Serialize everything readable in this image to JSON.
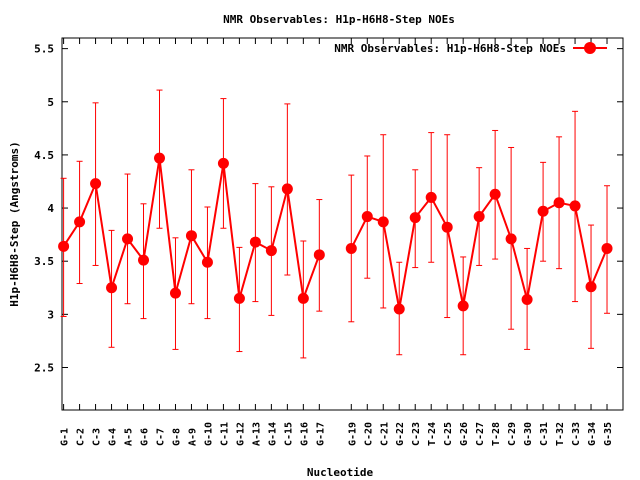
{
  "chart_data": {
    "type": "line",
    "title": "NMR Observables: H1p-H6H8-Step NOEs",
    "xlabel": "Nucleotide",
    "ylabel": "H1p-H6H8-Step (Angstroms)",
    "ylim": [
      2.1,
      5.6
    ],
    "yticks": [
      "2.5",
      "3",
      "3.5",
      "4",
      "4.5",
      "5",
      "5.5"
    ],
    "ytick_values": [
      2.5,
      3,
      3.5,
      4,
      4.5,
      5,
      5.5
    ],
    "xlim": [
      0.9,
      36.0
    ],
    "grid": false,
    "legend_position": "top-right",
    "color": "#ff0000",
    "series": [
      {
        "name": "NMR Observables: H1p-H6H8-Step NOEs",
        "points": [
          {
            "label": "G-1",
            "x": 1,
            "y": 3.64,
            "lo": 2.98,
            "hi": 4.28
          },
          {
            "label": "C-2",
            "x": 2,
            "y": 3.87,
            "lo": 3.29,
            "hi": 4.44
          },
          {
            "label": "C-3",
            "x": 3,
            "y": 4.23,
            "lo": 3.46,
            "hi": 4.99
          },
          {
            "label": "G-4",
            "x": 4,
            "y": 3.25,
            "lo": 2.69,
            "hi": 3.79
          },
          {
            "label": "A-5",
            "x": 5,
            "y": 3.71,
            "lo": 3.1,
            "hi": 4.32
          },
          {
            "label": "G-6",
            "x": 6,
            "y": 3.51,
            "lo": 2.96,
            "hi": 4.04
          },
          {
            "label": "C-7",
            "x": 7,
            "y": 4.47,
            "lo": 3.81,
            "hi": 5.11
          },
          {
            "label": "G-8",
            "x": 8,
            "y": 3.2,
            "lo": 2.67,
            "hi": 3.72
          },
          {
            "label": "A-9",
            "x": 9,
            "y": 3.74,
            "lo": 3.1,
            "hi": 4.36
          },
          {
            "label": "G-10",
            "x": 10,
            "y": 3.49,
            "lo": 2.96,
            "hi": 4.01
          },
          {
            "label": "C-11",
            "x": 11,
            "y": 4.42,
            "lo": 3.81,
            "hi": 5.03
          },
          {
            "label": "G-12",
            "x": 12,
            "y": 3.15,
            "lo": 2.65,
            "hi": 3.63
          },
          {
            "label": "A-13",
            "x": 13,
            "y": 3.68,
            "lo": 3.12,
            "hi": 4.23
          },
          {
            "label": "G-14",
            "x": 14,
            "y": 3.6,
            "lo": 2.99,
            "hi": 4.2
          },
          {
            "label": "C-15",
            "x": 15,
            "y": 4.18,
            "lo": 3.37,
            "hi": 4.98
          },
          {
            "label": "G-16",
            "x": 16,
            "y": 3.15,
            "lo": 2.59,
            "hi": 3.69
          },
          {
            "label": "G-17",
            "x": 17,
            "y": 3.56,
            "lo": 3.03,
            "hi": 4.08
          },
          {
            "label": "G-19",
            "x": 19,
            "y": 3.62,
            "lo": 2.93,
            "hi": 4.31
          },
          {
            "label": "C-20",
            "x": 20,
            "y": 3.92,
            "lo": 3.34,
            "hi": 4.49
          },
          {
            "label": "C-21",
            "x": 21,
            "y": 3.87,
            "lo": 3.06,
            "hi": 4.69
          },
          {
            "label": "G-22",
            "x": 22,
            "y": 3.05,
            "lo": 2.62,
            "hi": 3.49
          },
          {
            "label": "C-23",
            "x": 23,
            "y": 3.91,
            "lo": 3.44,
            "hi": 4.36
          },
          {
            "label": "T-24",
            "x": 24,
            "y": 4.1,
            "lo": 3.49,
            "hi": 4.71
          },
          {
            "label": "C-25",
            "x": 25,
            "y": 3.82,
            "lo": 2.97,
            "hi": 4.69
          },
          {
            "label": "G-26",
            "x": 26,
            "y": 3.08,
            "lo": 2.62,
            "hi": 3.54
          },
          {
            "label": "C-27",
            "x": 27,
            "y": 3.92,
            "lo": 3.46,
            "hi": 4.38
          },
          {
            "label": "T-28",
            "x": 28,
            "y": 4.13,
            "lo": 3.52,
            "hi": 4.73
          },
          {
            "label": "C-29",
            "x": 29,
            "y": 3.71,
            "lo": 2.86,
            "hi": 4.57
          },
          {
            "label": "G-30",
            "x": 30,
            "y": 3.14,
            "lo": 2.67,
            "hi": 3.62
          },
          {
            "label": "C-31",
            "x": 31,
            "y": 3.97,
            "lo": 3.5,
            "hi": 4.43
          },
          {
            "label": "T-32",
            "x": 32,
            "y": 4.05,
            "lo": 3.43,
            "hi": 4.67
          },
          {
            "label": "C-33",
            "x": 33,
            "y": 4.02,
            "lo": 3.12,
            "hi": 4.91
          },
          {
            "label": "G-34",
            "x": 34,
            "y": 3.26,
            "lo": 2.68,
            "hi": 3.84
          },
          {
            "label": "G-35",
            "x": 35,
            "y": 3.62,
            "lo": 3.01,
            "hi": 4.21
          }
        ]
      }
    ]
  }
}
